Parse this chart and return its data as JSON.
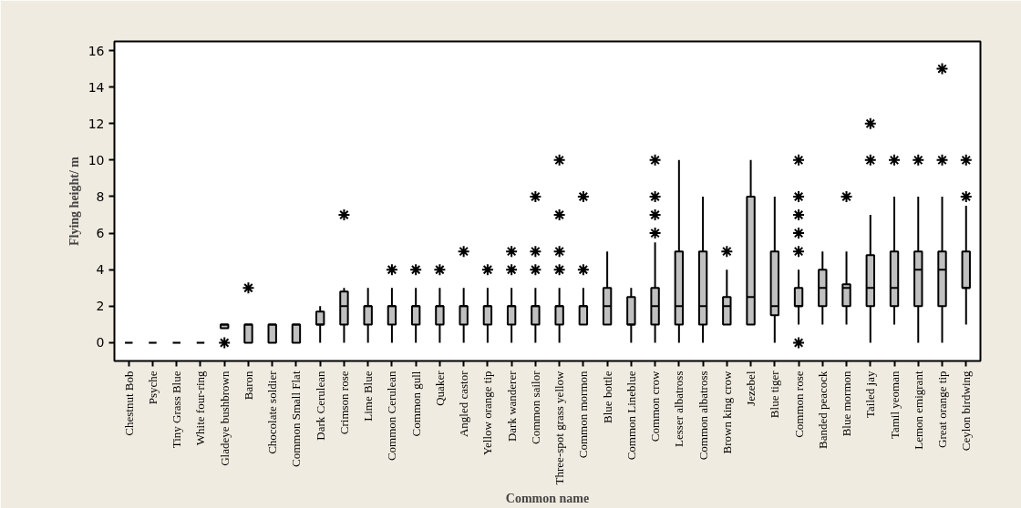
{
  "chart_data": {
    "type": "box",
    "xlabel": "Common name",
    "ylabel": "Flying height/ m",
    "categories": [
      "Chestnut Bob",
      "Psyche",
      "Tiny Grass Blue",
      "White four-ring",
      "Gladeye bushbrown",
      "Baron",
      "Chocolate soldier",
      "Common Small Flat",
      "Dark Cerulean",
      "Crimson rose",
      "Lime Blue",
      "Common Cerulean",
      "Common gull",
      "Quaker",
      "Angled castor",
      "Yellow orange tip",
      "Dark wanderer",
      "Common sailor",
      "Three-spot grass yellow",
      "Common mormon",
      "Blue bottle",
      "Common Lineblue",
      "Common crow",
      "Lesser albatross",
      "Common albatross",
      "Brown king crow",
      "Jezebel",
      "Blue tiger",
      "Common rose",
      "Banded peacock",
      "Blue mormon",
      "Tailed jay",
      "Tamil yeoman",
      "Lemon emigrant",
      "Great orange tip",
      "Ceylon birdwing"
    ],
    "boxes": [
      {
        "low": 0,
        "q1": 0,
        "median": 0,
        "q3": 0,
        "high": 0
      },
      {
        "low": 0,
        "q1": 0,
        "median": 0,
        "q3": 0,
        "high": 0
      },
      {
        "low": 0,
        "q1": 0,
        "median": 0,
        "q3": 0,
        "high": 0
      },
      {
        "low": 0,
        "q1": 0,
        "median": 0,
        "q3": 0,
        "high": 0
      },
      {
        "low": 0.8,
        "q1": 0.8,
        "median": 1,
        "q3": 1,
        "high": 1,
        "outliers": [
          0
        ]
      },
      {
        "low": 0,
        "q1": 0,
        "median": 1,
        "q3": 1,
        "high": 1,
        "outliers": [
          3
        ]
      },
      {
        "low": 0,
        "q1": 0,
        "median": 1,
        "q3": 1,
        "high": 1
      },
      {
        "low": 0,
        "q1": 0,
        "median": 1,
        "q3": 1,
        "high": 1
      },
      {
        "low": 0,
        "q1": 1,
        "median": 1,
        "q3": 1.7,
        "high": 2
      },
      {
        "low": 0,
        "q1": 1,
        "median": 2,
        "q3": 2.8,
        "high": 3,
        "outliers": [
          7
        ]
      },
      {
        "low": 0,
        "q1": 1,
        "median": 2,
        "q3": 2,
        "high": 3
      },
      {
        "low": 0,
        "q1": 1,
        "median": 2,
        "q3": 2,
        "high": 3,
        "outliers": [
          4
        ]
      },
      {
        "low": 0,
        "q1": 1,
        "median": 2,
        "q3": 2,
        "high": 3,
        "outliers": [
          4
        ]
      },
      {
        "low": 0,
        "q1": 1,
        "median": 2,
        "q3": 2,
        "high": 3,
        "outliers": [
          4
        ]
      },
      {
        "low": 0,
        "q1": 1,
        "median": 2,
        "q3": 2,
        "high": 3,
        "outliers": [
          5
        ]
      },
      {
        "low": 0,
        "q1": 1,
        "median": 2,
        "q3": 2,
        "high": 3,
        "outliers": [
          4
        ]
      },
      {
        "low": 0,
        "q1": 1,
        "median": 2,
        "q3": 2,
        "high": 3,
        "outliers": [
          4,
          5
        ]
      },
      {
        "low": 0,
        "q1": 1,
        "median": 2,
        "q3": 2,
        "high": 3,
        "outliers": [
          4,
          5,
          8
        ]
      },
      {
        "low": 0,
        "q1": 1,
        "median": 2,
        "q3": 2,
        "high": 3,
        "outliers": [
          4,
          5,
          7,
          10
        ]
      },
      {
        "low": 1,
        "q1": 1,
        "median": 2,
        "q3": 2,
        "high": 3,
        "outliers": [
          4,
          8
        ]
      },
      {
        "low": 1,
        "q1": 1,
        "median": 2,
        "q3": 3,
        "high": 5
      },
      {
        "low": 0,
        "q1": 1,
        "median": 1,
        "q3": 2.5,
        "high": 3
      },
      {
        "low": 0,
        "q1": 1,
        "median": 2,
        "q3": 3,
        "high": 5.5,
        "outliers": [
          6,
          7,
          8,
          10
        ]
      },
      {
        "low": 0,
        "q1": 1,
        "median": 2,
        "q3": 5,
        "high": 10
      },
      {
        "low": 0,
        "q1": 1,
        "median": 2,
        "q3": 5,
        "high": 8
      },
      {
        "low": 1,
        "q1": 1,
        "median": 2,
        "q3": 2.5,
        "high": 4,
        "outliers": [
          5
        ]
      },
      {
        "low": 1,
        "q1": 1,
        "median": 2.5,
        "q3": 8,
        "high": 10
      },
      {
        "low": 0,
        "q1": 1.5,
        "median": 2,
        "q3": 5,
        "high": 8
      },
      {
        "low": 1,
        "q1": 2,
        "median": 2,
        "q3": 3,
        "high": 4,
        "outliers": [
          0,
          5,
          6,
          7,
          8,
          10
        ]
      },
      {
        "low": 1,
        "q1": 2,
        "median": 3,
        "q3": 4,
        "high": 5
      },
      {
        "low": 1,
        "q1": 2,
        "median": 3,
        "q3": 3.2,
        "high": 5,
        "outliers": [
          8
        ]
      },
      {
        "low": 0,
        "q1": 2,
        "median": 3,
        "q3": 4.8,
        "high": 7,
        "outliers": [
          10,
          12
        ]
      },
      {
        "low": 1,
        "q1": 2,
        "median": 3,
        "q3": 5,
        "high": 8,
        "outliers": [
          10
        ]
      },
      {
        "low": 0,
        "q1": 2,
        "median": 4,
        "q3": 5,
        "high": 8,
        "outliers": [
          10
        ]
      },
      {
        "low": 0,
        "q1": 2,
        "median": 4,
        "q3": 5,
        "high": 8,
        "outliers": [
          10,
          15
        ]
      },
      {
        "low": 1,
        "q1": 3,
        "median": 3,
        "q3": 5,
        "high": 7.5,
        "outliers": [
          8,
          10
        ]
      }
    ],
    "color": "#c0c0c0",
    "ylim": [
      -1,
      16.5
    ],
    "yticks": [
      0,
      2,
      4,
      6,
      8,
      10,
      12,
      14,
      16
    ],
    "grid": false
  }
}
